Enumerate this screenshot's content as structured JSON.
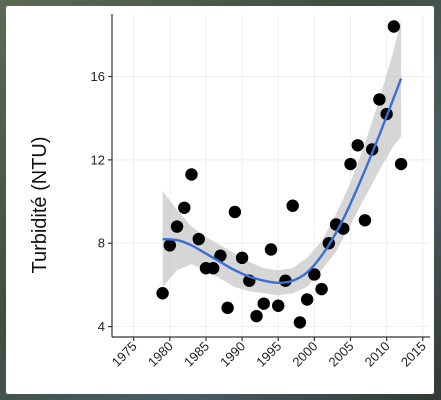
{
  "chart_data": {
    "type": "scatter",
    "title": "",
    "xlabel": "",
    "ylabel": "Turbidité (NTU)",
    "xlim": [
      1972,
      2016
    ],
    "ylim": [
      3.5,
      19
    ],
    "x_ticks": [
      1975,
      1980,
      1985,
      1990,
      1995,
      2000,
      2005,
      2010,
      2015
    ],
    "y_ticks": [
      4,
      8,
      12,
      16
    ],
    "grid": true,
    "legend": "none",
    "points": [
      {
        "x": 1979,
        "y": 5.6
      },
      {
        "x": 1980,
        "y": 7.9
      },
      {
        "x": 1981,
        "y": 8.8
      },
      {
        "x": 1982,
        "y": 9.7
      },
      {
        "x": 1983,
        "y": 11.3
      },
      {
        "x": 1984,
        "y": 8.2
      },
      {
        "x": 1985,
        "y": 6.8
      },
      {
        "x": 1986,
        "y": 6.8
      },
      {
        "x": 1987,
        "y": 7.4
      },
      {
        "x": 1988,
        "y": 4.9
      },
      {
        "x": 1989,
        "y": 9.5
      },
      {
        "x": 1990,
        "y": 7.3
      },
      {
        "x": 1991,
        "y": 6.2
      },
      {
        "x": 1992,
        "y": 4.5
      },
      {
        "x": 1993,
        "y": 5.1
      },
      {
        "x": 1994,
        "y": 7.7
      },
      {
        "x": 1995,
        "y": 5.0
      },
      {
        "x": 1996,
        "y": 6.2
      },
      {
        "x": 1997,
        "y": 9.8
      },
      {
        "x": 1998,
        "y": 4.2
      },
      {
        "x": 1999,
        "y": 5.3
      },
      {
        "x": 2000,
        "y": 6.5
      },
      {
        "x": 2001,
        "y": 5.8
      },
      {
        "x": 2002,
        "y": 8.0
      },
      {
        "x": 2003,
        "y": 8.9
      },
      {
        "x": 2004,
        "y": 8.7
      },
      {
        "x": 2005,
        "y": 11.8
      },
      {
        "x": 2006,
        "y": 12.7
      },
      {
        "x": 2007,
        "y": 9.1
      },
      {
        "x": 2008,
        "y": 12.5
      },
      {
        "x": 2009,
        "y": 14.9
      },
      {
        "x": 2010,
        "y": 14.2
      },
      {
        "x": 2011,
        "y": 18.4
      },
      {
        "x": 2012,
        "y": 11.8
      }
    ],
    "smooth": {
      "x": [
        1979,
        1981,
        1983,
        1985,
        1987,
        1989,
        1991,
        1993,
        1995,
        1997,
        1999,
        2001,
        2003,
        2005,
        2007,
        2009,
        2011,
        2012
      ],
      "y": [
        8.2,
        8.15,
        7.9,
        7.5,
        7.1,
        6.7,
        6.4,
        6.2,
        6.1,
        6.2,
        6.6,
        7.4,
        8.5,
        9.9,
        11.5,
        13.2,
        15.0,
        15.9
      ],
      "lower": [
        5.9,
        6.7,
        7.0,
        6.7,
        6.3,
        5.9,
        5.7,
        5.6,
        5.5,
        5.6,
        5.9,
        6.7,
        7.6,
        8.9,
        10.2,
        11.5,
        12.7,
        13.1
      ],
      "upper": [
        10.5,
        9.6,
        8.8,
        8.3,
        7.9,
        7.5,
        7.1,
        6.8,
        6.7,
        6.8,
        7.3,
        8.1,
        9.4,
        10.9,
        12.8,
        14.9,
        17.3,
        18.7
      ]
    },
    "colors": {
      "points": "#000000",
      "line": "#3b6fd6",
      "band": "#c4c4c4",
      "grid": "#eeeeee",
      "axis": "#333333"
    }
  }
}
